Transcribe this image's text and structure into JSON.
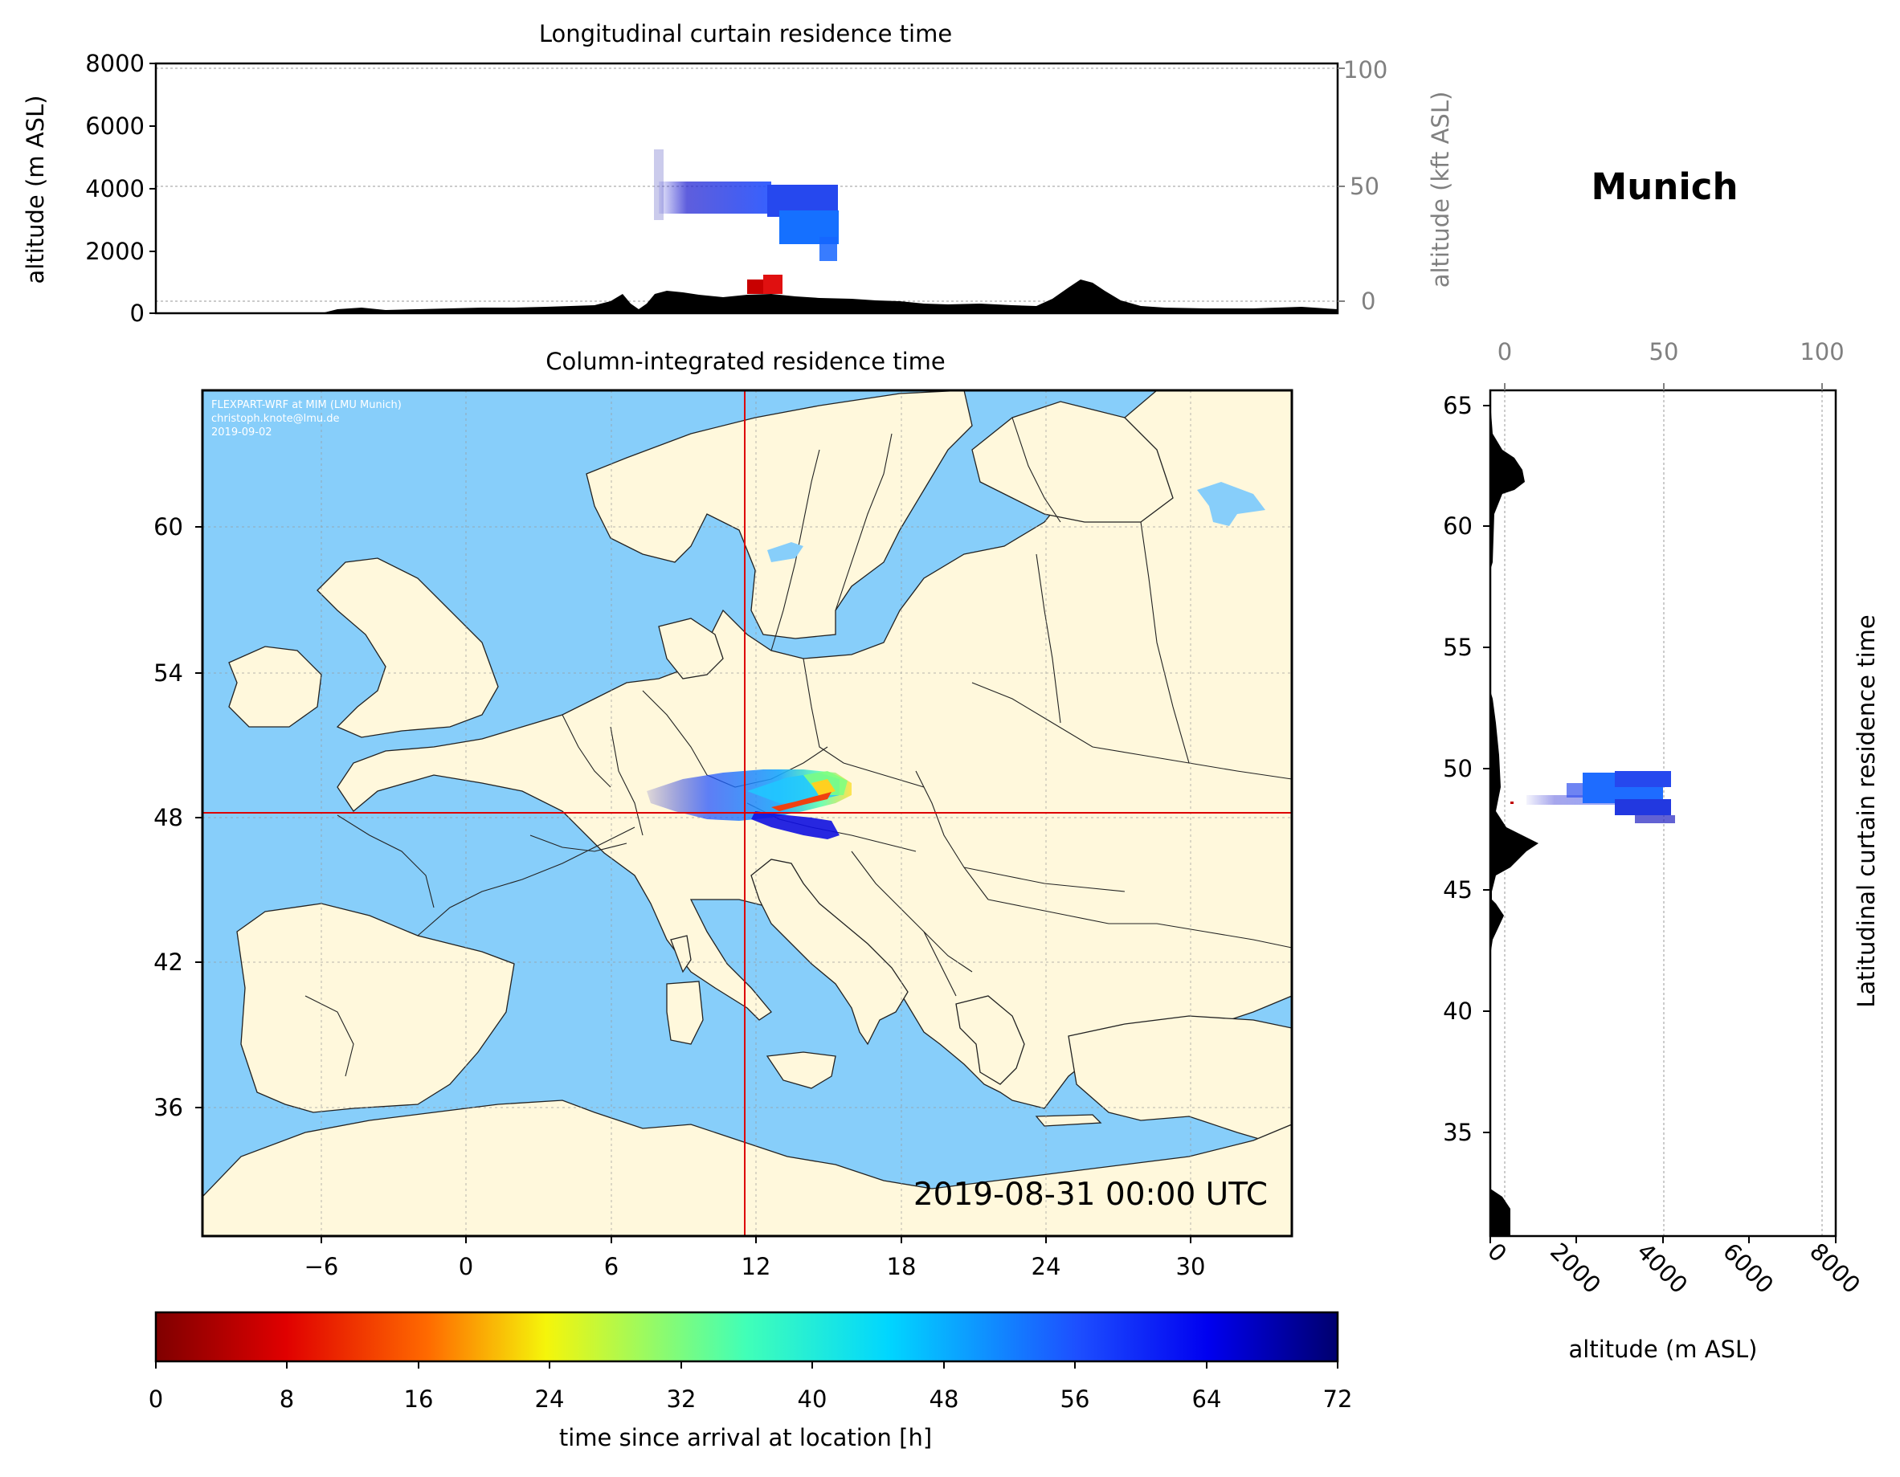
{
  "location_title": "Munich",
  "longitudinal_panel": {
    "title": "Longitudinal curtain residence time",
    "ylabel_left": "altitude (m ASL)",
    "ylabel_right": "altitude (kft ASL)",
    "left_ticks": [
      "0",
      "2000",
      "4000",
      "6000",
      "8000"
    ],
    "right_ticks": [
      "0",
      "50",
      "100"
    ]
  },
  "map_panel": {
    "title": "Column-integrated residence time",
    "credit_lines": [
      "FLEXPART-WRF at MIM (LMU Munich)",
      "christoph.knote@lmu.de",
      "2019-09-02"
    ],
    "timestamp": "2019-08-31 00:00 UTC",
    "lon_ticks": [
      "−6",
      "0",
      "6",
      "12",
      "18",
      "24",
      "30"
    ],
    "lat_ticks": [
      "36",
      "42",
      "48",
      "54",
      "60"
    ],
    "crosshair": {
      "lon": 11.6,
      "lat": 48.15
    }
  },
  "latitudinal_panel": {
    "ylabel": "Latitudinal curtain residence time",
    "xlabel": "altitude (m ASL)",
    "bottom_ticks": [
      "0",
      "2000",
      "4000",
      "6000",
      "8000"
    ],
    "top_ticks": [
      "0",
      "50",
      "100"
    ],
    "lat_ticks": [
      "35",
      "40",
      "45",
      "50",
      "55",
      "60",
      "65"
    ]
  },
  "colorbar": {
    "label": "time since arrival at location [h]",
    "ticks": [
      "0",
      "8",
      "16",
      "24",
      "32",
      "40",
      "48",
      "56",
      "64",
      "72"
    ],
    "range": [
      0,
      72
    ],
    "colormap": "jet_r"
  },
  "colors": {
    "ocean": "#87CEFA",
    "land": "#FFF8DC",
    "crosshair": "#DD0000",
    "terrain": "#000000"
  }
}
